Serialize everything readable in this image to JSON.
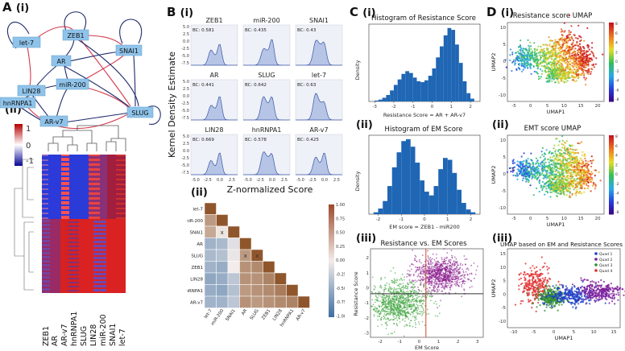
{
  "panels": {
    "A": {
      "label": "A",
      "sub1": "(i)",
      "sub2": "(ii)"
    },
    "B": {
      "label": "B",
      "sub1": "(i)",
      "sub2": "(ii)"
    },
    "C": {
      "label": "C",
      "sub1": "(i)",
      "sub2": "(ii)",
      "sub3": "(iii)"
    },
    "D": {
      "label": "D",
      "sub1": "(i)",
      "sub2": "(ii)",
      "sub3": "(iii)"
    }
  },
  "network": {
    "nodes": [
      "let-7",
      "ZEB1",
      "AR",
      "SNAI1",
      "LIN28",
      "miR-200",
      "hnRNPA1",
      "SLUG",
      "AR-v7"
    ],
    "colors": {
      "activation": "#1f2a6b",
      "inhibition": "#d23a4e",
      "node": "#8fc3ea"
    }
  },
  "heatmap": {
    "colorbar_ticks": [
      "1",
      "0",
      "-1"
    ],
    "columns": [
      "ZEB1",
      "AR",
      "AR-v7",
      "hnRNPA1",
      "SLUG",
      "LIN28",
      "miR-200",
      "SNAI1",
      "let-7"
    ]
  },
  "kde": {
    "ylabel": "Kernel Density Estimate",
    "xlabel": "Z-normalized  Score",
    "yticks": [
      "5.0",
      "2.5",
      "0.0",
      "-2.5",
      "-5.0",
      "-7.5"
    ],
    "xticks": [
      "-5.0",
      "-2.5",
      "0.0",
      "2.5"
    ],
    "cells": [
      {
        "name": "ZEB1",
        "bc": "BC: 0.581"
      },
      {
        "name": "miR-200",
        "bc": "BC: 0.435"
      },
      {
        "name": "SNAI1",
        "bc": "BC: 0.43"
      },
      {
        "name": "AR",
        "bc": "BC: 0.441"
      },
      {
        "name": "SLUG",
        "bc": "BC: 0.642"
      },
      {
        "name": "let-7",
        "bc": "BC: 0.63"
      },
      {
        "name": "LIN28",
        "bc": "BC: 0.669"
      },
      {
        "name": "hnRNPA1",
        "bc": "BC: 0.578"
      },
      {
        "name": "AR-v7",
        "bc": "BC: 0.425"
      }
    ]
  },
  "corr": {
    "labels": [
      "let-7",
      "miR-200",
      "SNAI1",
      "AR",
      "SLUG",
      "ZEB1",
      "LIN28",
      "hnRNPA1",
      "AR-v7"
    ],
    "colorbar_ticks": [
      "1.00",
      "0.75",
      "0.50",
      "0.25",
      "0.00",
      "-0.25",
      "-0.50",
      "-0.75",
      "-1.00"
    ],
    "marker": "x",
    "matrix": [
      [
        1.0
      ],
      [
        0.55,
        1.0
      ],
      [
        0.45,
        0.05,
        1.0
      ],
      [
        -0.45,
        -0.4,
        -0.1,
        1.0
      ],
      [
        -0.4,
        -0.35,
        -0.05,
        0.55,
        1.0
      ],
      [
        -0.45,
        -0.5,
        0.0,
        0.6,
        0.65,
        1.0
      ],
      [
        -0.55,
        -0.5,
        -0.3,
        0.6,
        0.6,
        0.7,
        1.0
      ],
      [
        -0.5,
        -0.55,
        -0.35,
        0.55,
        0.6,
        0.65,
        0.75,
        1.0
      ],
      [
        -0.45,
        -0.45,
        -0.3,
        0.6,
        0.55,
        0.6,
        0.65,
        0.7,
        1.0
      ]
    ],
    "x_marks": [
      [
        2,
        1
      ],
      [
        4,
        3
      ],
      [
        4,
        4
      ]
    ]
  },
  "chart_data": [
    {
      "type": "bar",
      "title": "Histogram of Resistance Score",
      "xlabel": "Resistance Score = AR + AR-v7",
      "ylabel": "Density",
      "xticks": [
        "-3",
        "-2",
        "-1",
        "0",
        "1",
        "2"
      ],
      "xlim": [
        -3.3,
        2.5
      ],
      "x": [
        -2.9,
        -2.7,
        -2.5,
        -2.3,
        -2.1,
        -1.9,
        -1.7,
        -1.5,
        -1.3,
        -1.1,
        -0.9,
        -0.7,
        -0.5,
        -0.3,
        -0.1,
        0.1,
        0.3,
        0.5,
        0.7,
        0.9,
        1.1,
        1.3,
        1.5,
        1.7,
        1.9,
        2.1
      ],
      "values": [
        0.01,
        0.02,
        0.04,
        0.07,
        0.12,
        0.18,
        0.24,
        0.3,
        0.33,
        0.31,
        0.26,
        0.22,
        0.21,
        0.23,
        0.28,
        0.36,
        0.48,
        0.6,
        0.72,
        0.8,
        0.78,
        0.62,
        0.42,
        0.22,
        0.09,
        0.03
      ]
    },
    {
      "type": "bar",
      "title": "Histogram of EM Score",
      "xlabel": "EM score = ZEB1 - miR200",
      "ylabel": "Density",
      "xticks": [
        "-2",
        "-1",
        "0",
        "1",
        "2"
      ],
      "xlim": [
        -2.4,
        2.4
      ],
      "x": [
        -2.1,
        -1.9,
        -1.7,
        -1.5,
        -1.3,
        -1.1,
        -0.9,
        -0.7,
        -0.5,
        -0.3,
        -0.1,
        0.1,
        0.3,
        0.5,
        0.7,
        0.9,
        1.1,
        1.3,
        1.5,
        1.7,
        1.9,
        2.1
      ],
      "values": [
        0.02,
        0.06,
        0.14,
        0.3,
        0.5,
        0.66,
        0.78,
        0.8,
        0.72,
        0.55,
        0.36,
        0.24,
        0.2,
        0.3,
        0.48,
        0.6,
        0.58,
        0.44,
        0.26,
        0.12,
        0.05,
        0.02
      ]
    },
    {
      "type": "scatter",
      "title": "Resistance vs. EM Scores",
      "xlabel": "EM Score",
      "ylabel": "Resistance Score",
      "xticks": [
        "-2",
        "-1",
        "0",
        "1",
        "2",
        "3"
      ],
      "yticks": [
        "2",
        "1",
        "0",
        "-1",
        "-2",
        "-3"
      ],
      "xlim": [
        -2.5,
        3.3
      ],
      "ylim": [
        -3.3,
        2.6
      ],
      "series": [
        {
          "name": "purple cluster",
          "color": "#8a1a8e",
          "cx": 1.1,
          "cy": 0.9,
          "sx": 0.7,
          "sy": 0.55
        },
        {
          "name": "green cluster",
          "color": "#3aa13a",
          "cx": -1.0,
          "cy": -1.0,
          "sx": 0.7,
          "sy": 0.7
        }
      ],
      "hline": -0.4,
      "vline": 0.35
    }
  ],
  "umap": [
    {
      "title": "Resistance score UMAP",
      "xlabel": "UMAP1",
      "ylabel": "UMAP2",
      "xticks": [
        "-5",
        "0",
        "5",
        "10",
        "15",
        "20"
      ],
      "yticks": [
        "10",
        "5",
        "0",
        "-5",
        "-10"
      ],
      "colorbar_ticks": [
        "8",
        "6",
        "4",
        "2",
        "0",
        "-2",
        "-4",
        "-6",
        "-8"
      ]
    },
    {
      "title": "EMT score UMAP",
      "xlabel": "UMAP1",
      "ylabel": "UMAP2",
      "xticks": [
        "-5",
        "0",
        "5",
        "10",
        "15",
        "20"
      ],
      "yticks": [
        "10",
        "5",
        "0",
        "-5",
        "-10"
      ],
      "colorbar_ticks": [
        "8",
        "6",
        "4",
        "2",
        "0",
        "-2",
        "-4",
        "-6",
        "-8"
      ]
    },
    {
      "title": "UMAP based on EM and Resistance Scores",
      "xlabel": "UMAP1",
      "ylabel": "UMAP2",
      "xticks": [
        "-10",
        "-5",
        "0",
        "5",
        "10",
        "15"
      ],
      "yticks": [
        "15",
        "10",
        "5",
        "0",
        "-5",
        "-10"
      ],
      "legend": [
        "Quad 1",
        "Quad 2",
        "Quad 3",
        "Quad 4"
      ],
      "legend_colors": [
        "#1b3fc8",
        "#7a1a9a",
        "#2f8f2f",
        "#e03030"
      ]
    }
  ]
}
